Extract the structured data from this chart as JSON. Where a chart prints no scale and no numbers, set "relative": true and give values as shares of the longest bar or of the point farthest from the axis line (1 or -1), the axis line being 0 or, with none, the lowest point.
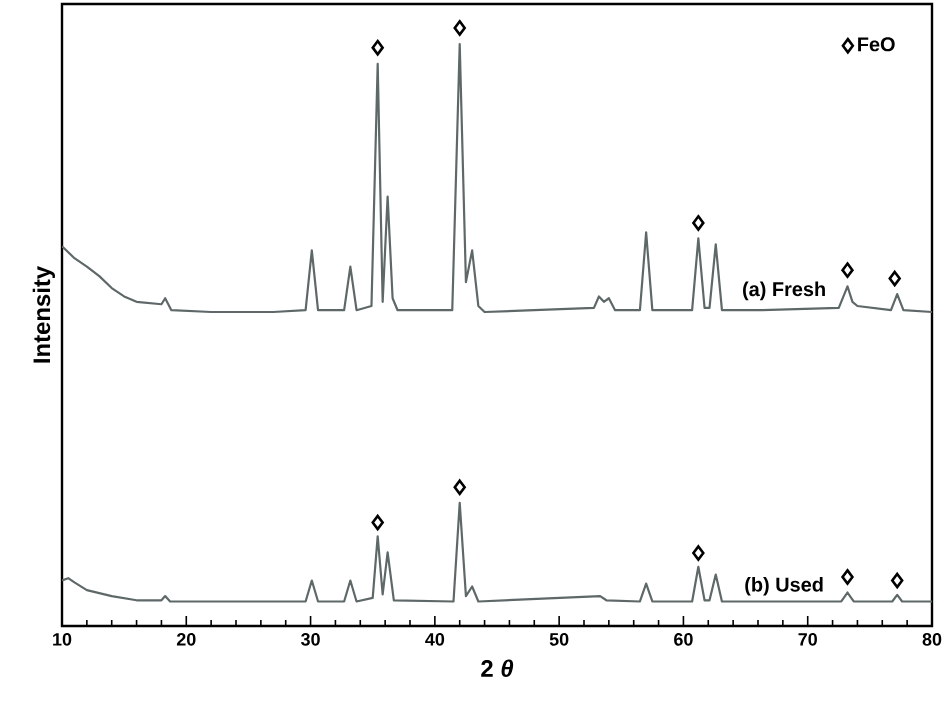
{
  "chart_data": {
    "type": "line",
    "xlabel": "2 *θ*",
    "ylabel": "Intensity",
    "relative": true,
    "xlim": [
      10,
      80
    ],
    "xticks": [
      10,
      20,
      30,
      40,
      50,
      60,
      70,
      80
    ],
    "legend": "top right",
    "series": [
      {
        "name": "(a) Fresh",
        "color": "#5f6868",
        "x": [
          10,
          11,
          12,
          13,
          14,
          15,
          16,
          18,
          18.3,
          18.8,
          22,
          27,
          29.6,
          30.1,
          30.6,
          32.7,
          33.2,
          33.7,
          34.9,
          35.4,
          35.8,
          36.2,
          36.6,
          37.0,
          41.4,
          42.0,
          42.5,
          43.0,
          43.5,
          44,
          48,
          52.8,
          53.2,
          53.6,
          54.0,
          54.5,
          56.5,
          57.0,
          57.5,
          60.7,
          61.2,
          61.7,
          62.1,
          62.6,
          63.1,
          66,
          72.5,
          73.2,
          73.6,
          74,
          76.7,
          77.2,
          77.7,
          80
        ],
        "values": [
          0.635,
          0.615,
          0.601,
          0.585,
          0.565,
          0.551,
          0.542,
          0.538,
          0.548,
          0.528,
          0.525,
          0.525,
          0.528,
          0.628,
          0.528,
          0.528,
          0.601,
          0.528,
          0.535,
          0.94,
          0.542,
          0.718,
          0.548,
          0.528,
          0.528,
          0.973,
          0.575,
          0.628,
          0.535,
          0.525,
          0.528,
          0.532,
          0.551,
          0.542,
          0.548,
          0.528,
          0.528,
          0.658,
          0.528,
          0.528,
          0.648,
          0.532,
          0.532,
          0.638,
          0.528,
          0.528,
          0.532,
          0.568,
          0.542,
          0.535,
          0.528,
          0.555,
          0.528,
          0.525
        ]
      },
      {
        "name": "(b) Used",
        "color": "#5f6868",
        "x": [
          10,
          10.5,
          11,
          12,
          14,
          16,
          18,
          18.3,
          18.7,
          29.6,
          30.1,
          30.6,
          32.7,
          33.2,
          33.7,
          35.0,
          35.4,
          35.8,
          36.2,
          36.7,
          41.5,
          42.0,
          42.5,
          43.0,
          43.5,
          53.3,
          53.8,
          56.5,
          57.0,
          57.5,
          60.7,
          61.2,
          61.7,
          62.1,
          62.6,
          63.1,
          72.7,
          73.2,
          73.7,
          76.8,
          77.2,
          77.6,
          80
        ],
        "values": [
          0.076,
          0.08,
          0.073,
          0.06,
          0.05,
          0.043,
          0.043,
          0.05,
          0.041,
          0.041,
          0.076,
          0.041,
          0.041,
          0.076,
          0.041,
          0.047,
          0.15,
          0.053,
          0.123,
          0.043,
          0.041,
          0.206,
          0.05,
          0.066,
          0.041,
          0.05,
          0.043,
          0.041,
          0.071,
          0.041,
          0.041,
          0.099,
          0.043,
          0.043,
          0.086,
          0.041,
          0.041,
          0.056,
          0.041,
          0.041,
          0.052,
          0.041,
          0.041
        ]
      },
      {
        "name": "FeO",
        "type": "scatter",
        "marker": "diamond",
        "color": "#000000",
        "x": [
          35.4,
          42.0,
          61.2,
          73.2,
          77.0,
          35.4,
          42.0,
          61.2,
          73.2,
          77.2
        ],
        "values": [
          0.967,
          1.0,
          0.674,
          0.595,
          0.581,
          0.173,
          0.232,
          0.122,
          0.082,
          0.076
        ]
      }
    ]
  }
}
